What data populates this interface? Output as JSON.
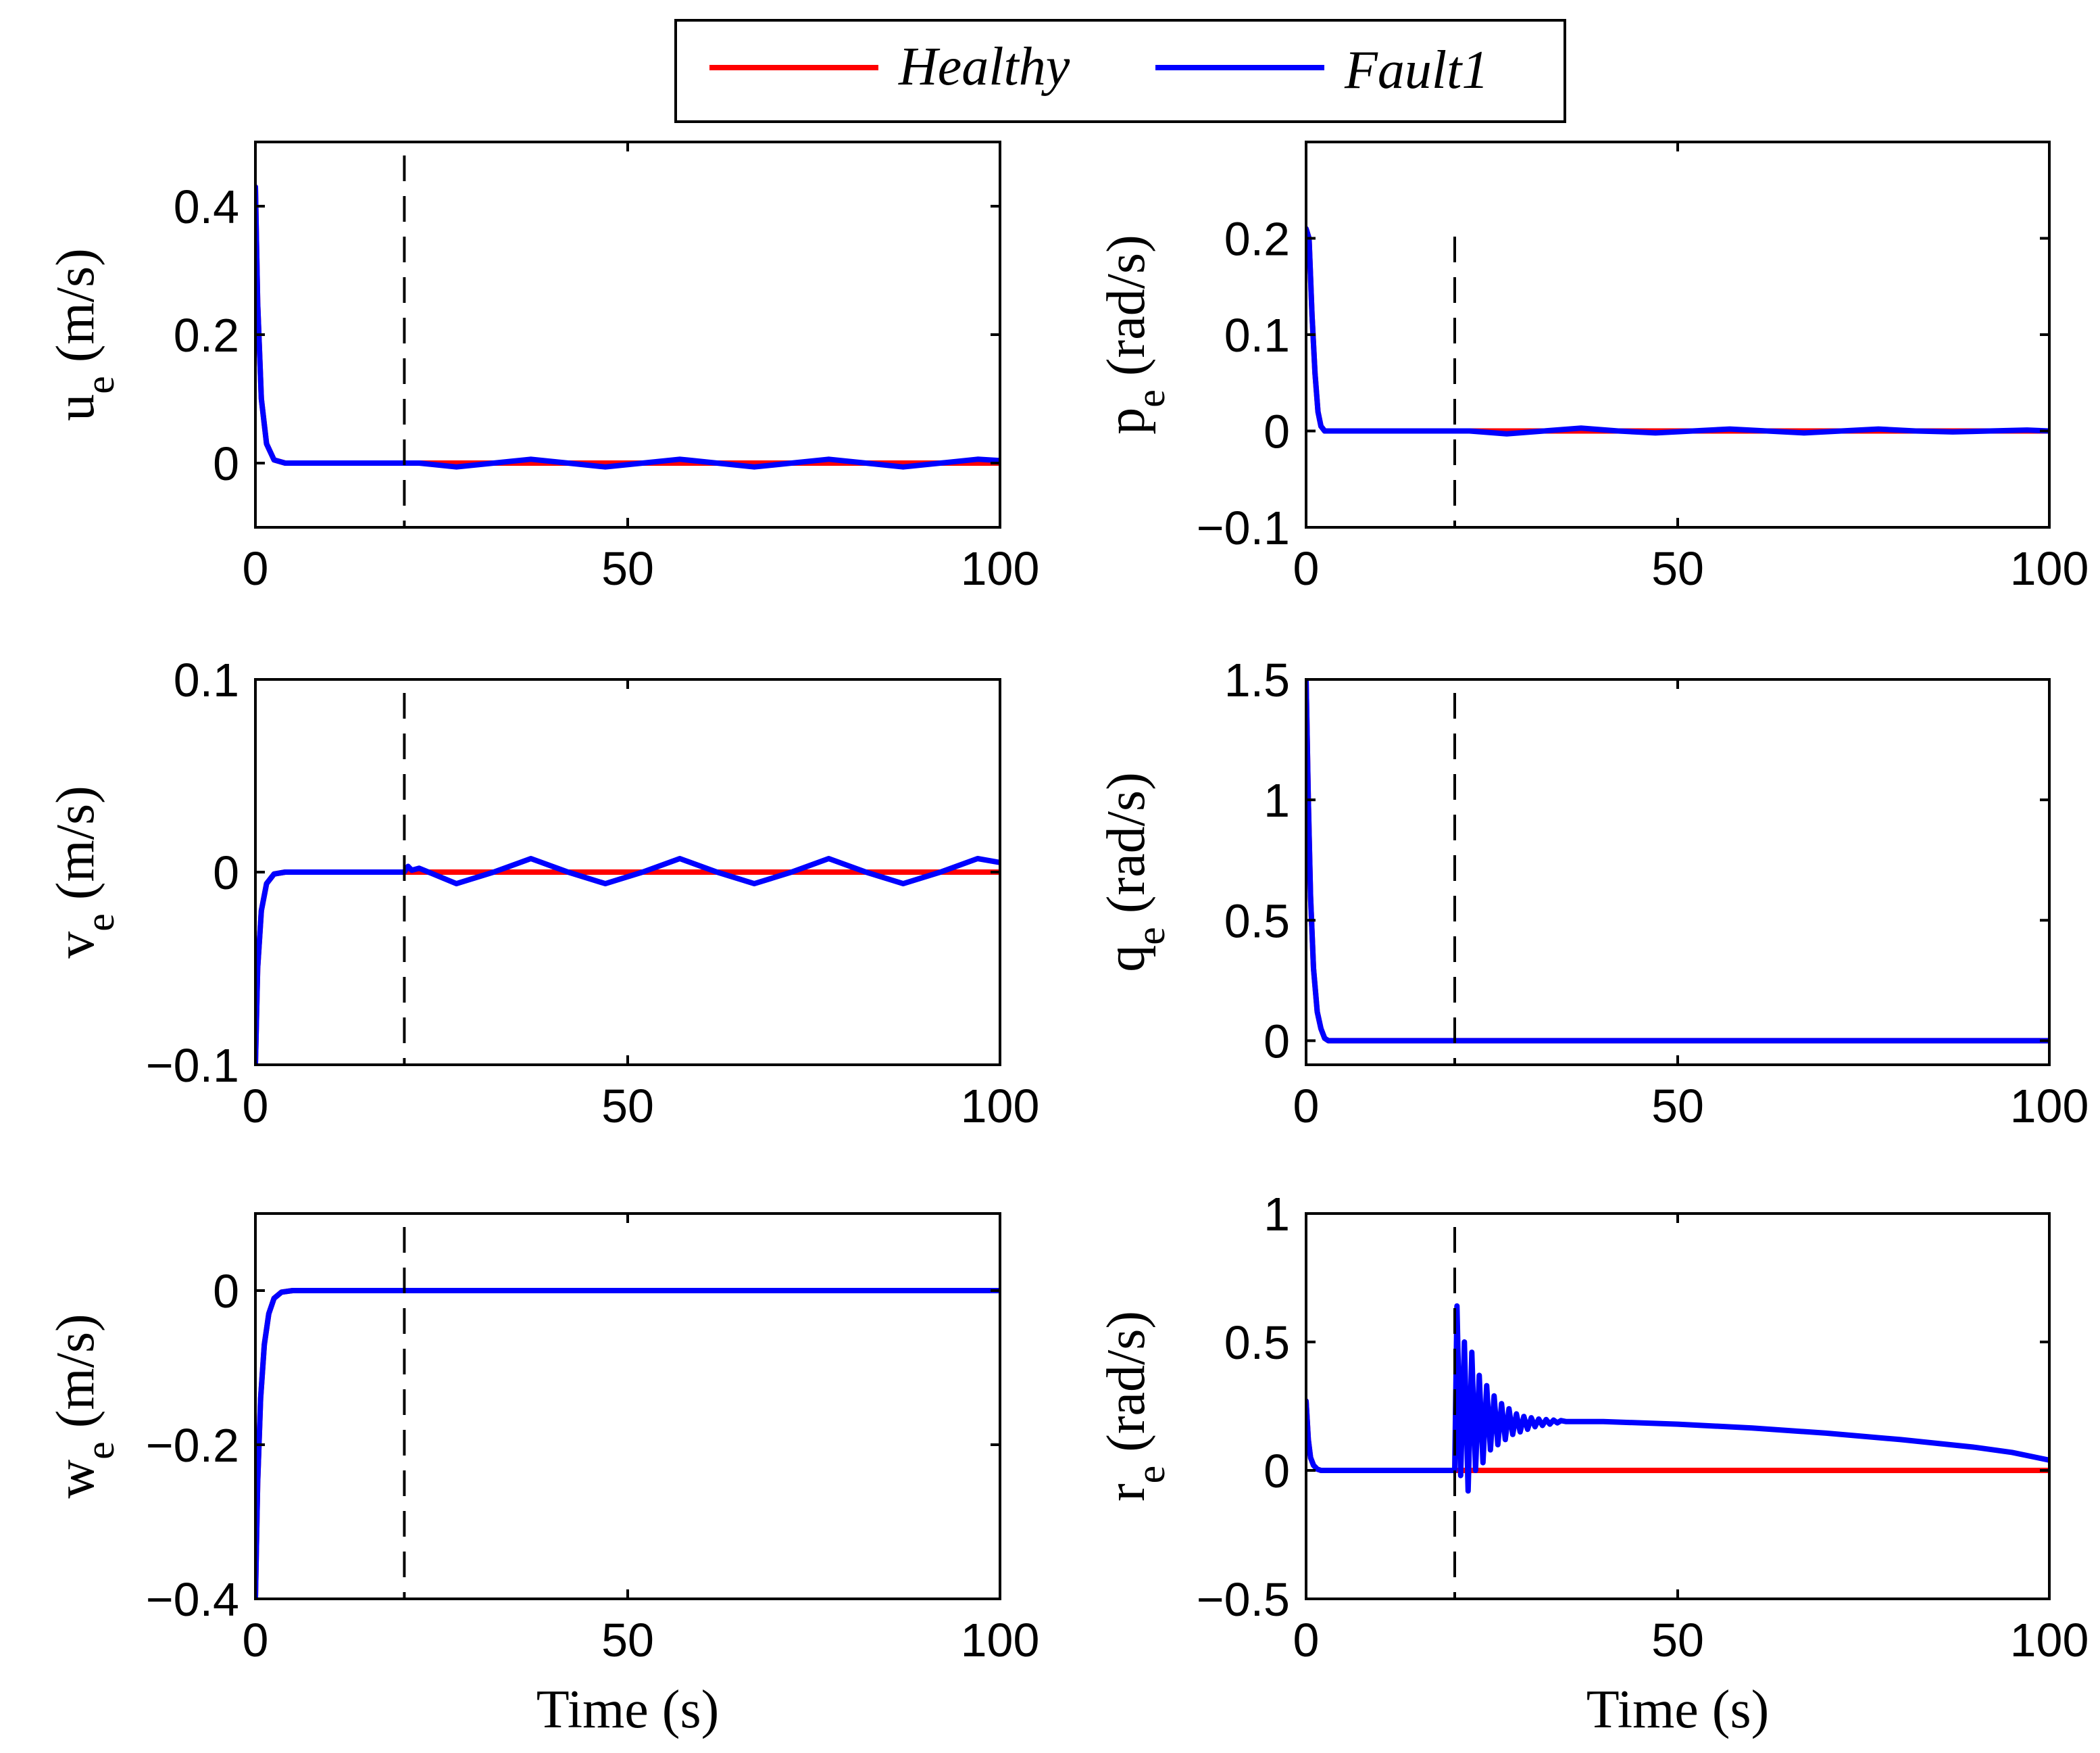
{
  "legend": {
    "entries": [
      {
        "name": "Healthy",
        "color": "#ff0000"
      },
      {
        "name": "Fault1",
        "color": "#0000ff"
      }
    ]
  },
  "chart_data": [
    {
      "id": "ue",
      "type": "line",
      "position": "top-left",
      "ylabel_main": "u",
      "ylabel_sub": "e",
      "ylabel_unit": " (m/s)",
      "xlabel": "",
      "xlim": [
        0,
        100
      ],
      "ylim": [
        -0.1,
        0.5
      ],
      "xticks": [
        0,
        50,
        100
      ],
      "xtick_labels": [
        "0",
        "50",
        "100"
      ],
      "yticks": [
        0,
        0.2,
        0.4
      ],
      "ytick_labels": [
        "0",
        "0.2",
        "0.4"
      ],
      "fault_time": 20,
      "series": [
        {
          "name": "Healthy",
          "x": [
            0,
            0.3,
            0.8,
            1.5,
            2.5,
            4,
            100
          ],
          "y": [
            0.43,
            0.25,
            0.1,
            0.03,
            0.005,
            0,
            0
          ]
        },
        {
          "name": "Fault1",
          "x": [
            0,
            0.3,
            0.8,
            1.5,
            2.5,
            4,
            20,
            22,
            27,
            32,
            37,
            42,
            47,
            52,
            57,
            62,
            67,
            72,
            77,
            82,
            87,
            92,
            97,
            100
          ],
          "y": [
            0.43,
            0.25,
            0.1,
            0.03,
            0.005,
            0,
            0,
            0,
            -0.006,
            0,
            0.006,
            0,
            -0.006,
            0,
            0.006,
            0,
            -0.006,
            0,
            0.006,
            0,
            -0.006,
            0,
            0.006,
            0.004
          ]
        }
      ]
    },
    {
      "id": "pe",
      "type": "line",
      "position": "top-right",
      "ylabel_main": "p",
      "ylabel_sub": "e",
      "ylabel_unit": " (rad/s)",
      "xlabel": "",
      "xlim": [
        0,
        100
      ],
      "ylim": [
        -0.1,
        0.3
      ],
      "xticks": [
        0,
        50,
        100
      ],
      "xtick_labels": [
        "0",
        "50",
        "100"
      ],
      "yticks": [
        -0.1,
        0,
        0.1,
        0.2
      ],
      "ytick_labels": [
        "−0.1",
        "0",
        "0.1",
        "0.2"
      ],
      "fault_time": 20,
      "series": [
        {
          "name": "Healthy",
          "x": [
            0,
            0.4,
            0.8,
            1.2,
            1.6,
            2.0,
            2.5,
            3.5,
            100
          ],
          "y": [
            0.21,
            0.2,
            0.12,
            0.06,
            0.02,
            0.005,
            0.0,
            0.0,
            0.0
          ]
        },
        {
          "name": "Fault1",
          "x": [
            0,
            0.4,
            0.8,
            1.2,
            1.6,
            2.0,
            2.5,
            3.5,
            20,
            22,
            27,
            32,
            37,
            42,
            47,
            52,
            57,
            62,
            67,
            72,
            77,
            82,
            87,
            92,
            97,
            100
          ],
          "y": [
            0.21,
            0.2,
            0.12,
            0.06,
            0.02,
            0.005,
            0.0,
            0.0,
            0.0,
            0.0,
            -0.003,
            0,
            0.003,
            0,
            -0.002,
            0,
            0.002,
            0,
            -0.002,
            0,
            0.002,
            0,
            -0.001,
            0,
            0.001,
            0
          ]
        }
      ]
    },
    {
      "id": "ve",
      "type": "line",
      "position": "middle-left",
      "ylabel_main": "v",
      "ylabel_sub": "e",
      "ylabel_unit": " (m/s)",
      "xlabel": "",
      "xlim": [
        0,
        100
      ],
      "ylim": [
        -0.1,
        0.1
      ],
      "xticks": [
        0,
        50,
        100
      ],
      "xtick_labels": [
        "0",
        "50",
        "100"
      ],
      "yticks": [
        -0.1,
        0,
        0.1
      ],
      "ytick_labels": [
        "−0.1",
        "0",
        "0.1"
      ],
      "fault_time": 20,
      "series": [
        {
          "name": "Healthy",
          "x": [
            0,
            0.3,
            0.8,
            1.5,
            2.5,
            4,
            100
          ],
          "y": [
            -0.1,
            -0.05,
            -0.02,
            -0.006,
            -0.001,
            0,
            0
          ]
        },
        {
          "name": "Fault1",
          "x": [
            0,
            0.3,
            0.8,
            1.5,
            2.5,
            4,
            20,
            20.5,
            21,
            22,
            27,
            32,
            37,
            42,
            47,
            52,
            57,
            62,
            67,
            72,
            77,
            82,
            87,
            92,
            97,
            100
          ],
          "y": [
            -0.1,
            -0.05,
            -0.02,
            -0.006,
            -0.001,
            0,
            0,
            0.003,
            0.001,
            0.002,
            -0.006,
            0,
            0.007,
            0,
            -0.006,
            0,
            0.007,
            0,
            -0.006,
            0,
            0.007,
            0,
            -0.006,
            0,
            0.007,
            0.005
          ]
        }
      ]
    },
    {
      "id": "qe",
      "type": "line",
      "position": "middle-right",
      "ylabel_main": "q",
      "ylabel_sub": "e",
      "ylabel_unit": " (rad/s)",
      "xlabel": "",
      "xlim": [
        0,
        100
      ],
      "ylim": [
        -0.1,
        1.5
      ],
      "xticks": [
        0,
        50,
        100
      ],
      "xtick_labels": [
        "0",
        "50",
        "100"
      ],
      "yticks": [
        0,
        0.5,
        1,
        1.5
      ],
      "ytick_labels": [
        "0",
        "0.5",
        "1",
        "1.5"
      ],
      "fault_time": 20,
      "series": [
        {
          "name": "Healthy",
          "x": [
            0,
            0.3,
            0.6,
            1,
            1.5,
            2,
            2.5,
            3,
            100
          ],
          "y": [
            1.5,
            1.0,
            0.6,
            0.3,
            0.12,
            0.05,
            0.01,
            0.0,
            0.0
          ]
        },
        {
          "name": "Fault1",
          "x": [
            0,
            0.3,
            0.6,
            1,
            1.5,
            2,
            2.5,
            3,
            100
          ],
          "y": [
            1.5,
            1.0,
            0.6,
            0.3,
            0.12,
            0.05,
            0.01,
            0.0,
            0.0
          ]
        }
      ]
    },
    {
      "id": "we",
      "type": "line",
      "position": "bottom-left",
      "ylabel_main": "w",
      "ylabel_sub": "e",
      "ylabel_unit": " (m/s)",
      "xlabel": "Time (s)",
      "xlim": [
        0,
        100
      ],
      "ylim": [
        -0.4,
        0.1
      ],
      "xticks": [
        0,
        50,
        100
      ],
      "xtick_labels": [
        "0",
        "50",
        "100"
      ],
      "yticks": [
        -0.4,
        -0.2,
        0
      ],
      "ytick_labels": [
        "−0.4",
        "−0.2",
        "0"
      ],
      "fault_time": 20,
      "series": [
        {
          "name": "Healthy",
          "x": [
            0,
            0.3,
            0.7,
            1.2,
            1.8,
            2.5,
            3.5,
            5,
            100
          ],
          "y": [
            -0.4,
            -0.25,
            -0.14,
            -0.07,
            -0.03,
            -0.01,
            -0.002,
            0,
            0
          ]
        },
        {
          "name": "Fault1",
          "x": [
            0,
            0.3,
            0.7,
            1.2,
            1.8,
            2.5,
            3.5,
            5,
            100
          ],
          "y": [
            -0.4,
            -0.25,
            -0.14,
            -0.07,
            -0.03,
            -0.01,
            -0.002,
            0,
            0
          ]
        }
      ]
    },
    {
      "id": "re",
      "type": "line",
      "position": "bottom-right",
      "ylabel_main": "r",
      "ylabel_sub": "e",
      "ylabel_unit": " (rad/s)",
      "xlabel": "Time (s)",
      "xlim": [
        0,
        100
      ],
      "ylim": [
        -0.5,
        1.0
      ],
      "xticks": [
        0,
        50,
        100
      ],
      "xtick_labels": [
        "0",
        "50",
        "100"
      ],
      "yticks": [
        -0.5,
        0,
        0.5,
        1
      ],
      "ytick_labels": [
        "−0.5",
        "0",
        "0.5",
        "1"
      ],
      "fault_time": 20,
      "series": [
        {
          "name": "Healthy",
          "x": [
            0,
            0.3,
            0.6,
            1.0,
            1.5,
            2.0,
            100
          ],
          "y": [
            0.27,
            0.12,
            0.05,
            0.02,
            0.005,
            0,
            0
          ]
        },
        {
          "name": "Fault1",
          "x": [
            0,
            0.3,
            0.6,
            1.0,
            1.5,
            2.0,
            20,
            20.3,
            20.8,
            21.3,
            21.8,
            22.3,
            22.8,
            23.3,
            23.8,
            24.3,
            24.8,
            25.3,
            25.8,
            26.3,
            26.8,
            27.3,
            27.8,
            28.3,
            28.8,
            29.3,
            29.8,
            30.3,
            30.8,
            31.3,
            31.8,
            32.3,
            32.8,
            33.3,
            33.8,
            34.3,
            35,
            40,
            50,
            60,
            70,
            80,
            90,
            95,
            100
          ],
          "y": [
            0.27,
            0.12,
            0.05,
            0.02,
            0.005,
            0,
            0,
            0.64,
            -0.02,
            0.5,
            -0.08,
            0.46,
            0.0,
            0.37,
            0.03,
            0.33,
            0.08,
            0.29,
            0.1,
            0.26,
            0.12,
            0.24,
            0.14,
            0.22,
            0.15,
            0.21,
            0.16,
            0.205,
            0.17,
            0.2,
            0.175,
            0.198,
            0.18,
            0.196,
            0.185,
            0.194,
            0.19,
            0.19,
            0.18,
            0.165,
            0.145,
            0.12,
            0.09,
            0.07,
            0.04
          ]
        }
      ]
    }
  ]
}
